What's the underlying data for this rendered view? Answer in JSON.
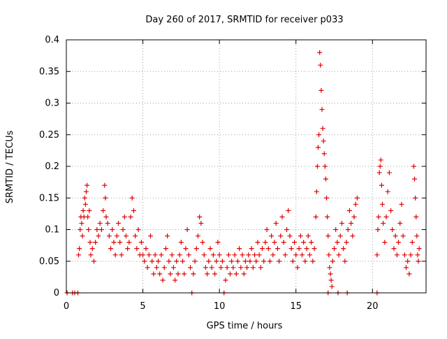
{
  "chart_data": {
    "type": "scatter",
    "title": "Day 260 of 2017, SRMTID for receiver p033",
    "xlabel": "GPS time / hours",
    "ylabel": "SRMTID / TECUs",
    "xlim": [
      0,
      23.5
    ],
    "ylim": [
      0,
      0.4
    ],
    "xticks": [
      0,
      5,
      10,
      15,
      20
    ],
    "xtick_labels": [
      "0",
      "5",
      "10",
      "15",
      "20"
    ],
    "yticks": [
      0,
      0.05,
      0.1,
      0.15,
      0.2,
      0.25,
      0.3,
      0.35,
      0.4
    ],
    "ytick_labels": [
      "0",
      "0.05",
      "0.1",
      "0.15",
      "0.2",
      "0.25",
      "0.3",
      "0.35",
      "0.4"
    ],
    "grid": true,
    "marker": "plus",
    "series_color": "#e00000",
    "series": [
      {
        "name": "SRMTID",
        "points": [
          [
            0.05,
            0.0
          ],
          [
            0.4,
            0.0
          ],
          [
            0.55,
            0.0
          ],
          [
            0.75,
            0.0
          ],
          [
            8.2,
            0.0
          ],
          [
            10.3,
            0.0
          ],
          [
            17.1,
            0.0
          ],
          [
            17.75,
            0.0
          ],
          [
            18.35,
            0.0
          ],
          [
            20.3,
            0.0
          ],
          [
            0.8,
            0.06
          ],
          [
            0.85,
            0.07
          ],
          [
            0.9,
            0.1
          ],
          [
            0.95,
            0.12
          ],
          [
            1.0,
            0.11
          ],
          [
            1.05,
            0.09
          ],
          [
            1.1,
            0.13
          ],
          [
            1.15,
            0.12
          ],
          [
            1.2,
            0.15
          ],
          [
            1.25,
            0.14
          ],
          [
            1.3,
            0.16
          ],
          [
            1.35,
            0.17
          ],
          [
            1.4,
            0.12
          ],
          [
            1.45,
            0.1
          ],
          [
            1.5,
            0.13
          ],
          [
            1.55,
            0.08
          ],
          [
            1.6,
            0.06
          ],
          [
            1.7,
            0.07
          ],
          [
            1.8,
            0.05
          ],
          [
            1.9,
            0.08
          ],
          [
            2.0,
            0.1
          ],
          [
            2.1,
            0.09
          ],
          [
            2.2,
            0.11
          ],
          [
            2.3,
            0.1
          ],
          [
            2.4,
            0.13
          ],
          [
            2.5,
            0.17
          ],
          [
            2.55,
            0.15
          ],
          [
            2.6,
            0.12
          ],
          [
            2.7,
            0.11
          ],
          [
            2.8,
            0.09
          ],
          [
            2.9,
            0.07
          ],
          [
            3.0,
            0.1
          ],
          [
            3.1,
            0.08
          ],
          [
            3.2,
            0.06
          ],
          [
            3.3,
            0.09
          ],
          [
            3.4,
            0.11
          ],
          [
            3.5,
            0.08
          ],
          [
            3.6,
            0.06
          ],
          [
            3.7,
            0.1
          ],
          [
            3.8,
            0.12
          ],
          [
            3.9,
            0.09
          ],
          [
            4.0,
            0.07
          ],
          [
            4.1,
            0.08
          ],
          [
            4.2,
            0.12
          ],
          [
            4.3,
            0.15
          ],
          [
            4.4,
            0.13
          ],
          [
            4.5,
            0.09
          ],
          [
            4.6,
            0.07
          ],
          [
            4.7,
            0.1
          ],
          [
            4.8,
            0.06
          ],
          [
            4.9,
            0.08
          ],
          [
            5.0,
            0.06
          ],
          [
            5.1,
            0.05
          ],
          [
            5.2,
            0.07
          ],
          [
            5.3,
            0.04
          ],
          [
            5.4,
            0.06
          ],
          [
            5.5,
            0.09
          ],
          [
            5.6,
            0.05
          ],
          [
            5.7,
            0.03
          ],
          [
            5.8,
            0.06
          ],
          [
            5.9,
            0.04
          ],
          [
            6.0,
            0.05
          ],
          [
            6.1,
            0.03
          ],
          [
            6.2,
            0.06
          ],
          [
            6.3,
            0.02
          ],
          [
            6.4,
            0.04
          ],
          [
            6.5,
            0.07
          ],
          [
            6.6,
            0.09
          ],
          [
            6.7,
            0.05
          ],
          [
            6.8,
            0.03
          ],
          [
            6.9,
            0.06
          ],
          [
            7.0,
            0.04
          ],
          [
            7.1,
            0.02
          ],
          [
            7.2,
            0.05
          ],
          [
            7.3,
            0.03
          ],
          [
            7.4,
            0.06
          ],
          [
            7.5,
            0.08
          ],
          [
            7.6,
            0.05
          ],
          [
            7.7,
            0.03
          ],
          [
            7.8,
            0.07
          ],
          [
            7.9,
            0.1
          ],
          [
            8.0,
            0.06
          ],
          [
            8.1,
            0.04
          ],
          [
            8.3,
            0.03
          ],
          [
            8.4,
            0.05
          ],
          [
            8.5,
            0.07
          ],
          [
            8.6,
            0.09
          ],
          [
            8.7,
            0.12
          ],
          [
            8.8,
            0.11
          ],
          [
            8.9,
            0.08
          ],
          [
            9.0,
            0.06
          ],
          [
            9.1,
            0.04
          ],
          [
            9.2,
            0.03
          ],
          [
            9.3,
            0.05
          ],
          [
            9.4,
            0.07
          ],
          [
            9.5,
            0.04
          ],
          [
            9.6,
            0.06
          ],
          [
            9.7,
            0.03
          ],
          [
            9.8,
            0.05
          ],
          [
            9.9,
            0.08
          ],
          [
            10.0,
            0.06
          ],
          [
            10.1,
            0.04
          ],
          [
            10.2,
            0.05
          ],
          [
            10.4,
            0.02
          ],
          [
            10.5,
            0.04
          ],
          [
            10.6,
            0.06
          ],
          [
            10.7,
            0.03
          ],
          [
            10.8,
            0.05
          ],
          [
            10.9,
            0.04
          ],
          [
            11.0,
            0.06
          ],
          [
            11.1,
            0.03
          ],
          [
            11.2,
            0.05
          ],
          [
            11.3,
            0.07
          ],
          [
            11.4,
            0.04
          ],
          [
            11.5,
            0.06
          ],
          [
            11.6,
            0.03
          ],
          [
            11.7,
            0.05
          ],
          [
            11.8,
            0.04
          ],
          [
            11.9,
            0.06
          ],
          [
            12.0,
            0.05
          ],
          [
            12.1,
            0.07
          ],
          [
            12.2,
            0.04
          ],
          [
            12.3,
            0.06
          ],
          [
            12.4,
            0.05
          ],
          [
            12.5,
            0.08
          ],
          [
            12.6,
            0.06
          ],
          [
            12.7,
            0.04
          ],
          [
            12.8,
            0.07
          ],
          [
            12.9,
            0.05
          ],
          [
            13.0,
            0.08
          ],
          [
            13.1,
            0.1
          ],
          [
            13.2,
            0.07
          ],
          [
            13.3,
            0.05
          ],
          [
            13.4,
            0.09
          ],
          [
            13.5,
            0.06
          ],
          [
            13.6,
            0.08
          ],
          [
            13.7,
            0.11
          ],
          [
            13.8,
            0.07
          ],
          [
            13.9,
            0.05
          ],
          [
            14.0,
            0.09
          ],
          [
            14.1,
            0.12
          ],
          [
            14.2,
            0.08
          ],
          [
            14.3,
            0.06
          ],
          [
            14.4,
            0.1
          ],
          [
            14.5,
            0.13
          ],
          [
            14.6,
            0.09
          ],
          [
            14.7,
            0.07
          ],
          [
            14.8,
            0.05
          ],
          [
            14.9,
            0.08
          ],
          [
            15.0,
            0.06
          ],
          [
            15.1,
            0.04
          ],
          [
            15.2,
            0.07
          ],
          [
            15.3,
            0.09
          ],
          [
            15.4,
            0.06
          ],
          [
            15.5,
            0.08
          ],
          [
            15.6,
            0.05
          ],
          [
            15.7,
            0.07
          ],
          [
            15.8,
            0.09
          ],
          [
            15.9,
            0.06
          ],
          [
            16.0,
            0.08
          ],
          [
            16.1,
            0.05
          ],
          [
            16.2,
            0.07
          ],
          [
            16.3,
            0.12
          ],
          [
            16.35,
            0.16
          ],
          [
            16.4,
            0.2
          ],
          [
            16.45,
            0.23
          ],
          [
            16.5,
            0.25
          ],
          [
            16.55,
            0.38
          ],
          [
            16.6,
            0.36
          ],
          [
            16.65,
            0.32
          ],
          [
            16.7,
            0.29
          ],
          [
            16.75,
            0.26
          ],
          [
            16.8,
            0.24
          ],
          [
            16.85,
            0.22
          ],
          [
            16.9,
            0.2
          ],
          [
            16.95,
            0.18
          ],
          [
            17.0,
            0.15
          ],
          [
            17.05,
            0.12
          ],
          [
            17.1,
            0.09
          ],
          [
            17.15,
            0.06
          ],
          [
            17.2,
            0.04
          ],
          [
            17.25,
            0.03
          ],
          [
            17.3,
            0.02
          ],
          [
            17.35,
            0.01
          ],
          [
            17.4,
            0.05
          ],
          [
            17.5,
            0.07
          ],
          [
            17.6,
            0.1
          ],
          [
            17.7,
            0.08
          ],
          [
            17.8,
            0.06
          ],
          [
            17.9,
            0.09
          ],
          [
            18.0,
            0.11
          ],
          [
            18.1,
            0.07
          ],
          [
            18.2,
            0.05
          ],
          [
            18.3,
            0.08
          ],
          [
            18.4,
            0.1
          ],
          [
            18.5,
            0.13
          ],
          [
            18.6,
            0.11
          ],
          [
            18.7,
            0.09
          ],
          [
            18.8,
            0.12
          ],
          [
            18.9,
            0.14
          ],
          [
            19.0,
            0.15
          ],
          [
            20.3,
            0.06
          ],
          [
            20.35,
            0.1
          ],
          [
            20.4,
            0.12
          ],
          [
            20.45,
            0.19
          ],
          [
            20.5,
            0.2
          ],
          [
            20.55,
            0.21
          ],
          [
            20.6,
            0.17
          ],
          [
            20.65,
            0.14
          ],
          [
            20.7,
            0.11
          ],
          [
            20.8,
            0.08
          ],
          [
            20.9,
            0.12
          ],
          [
            21.0,
            0.16
          ],
          [
            21.1,
            0.19
          ],
          [
            21.2,
            0.13
          ],
          [
            21.3,
            0.1
          ],
          [
            21.4,
            0.07
          ],
          [
            21.5,
            0.09
          ],
          [
            21.6,
            0.06
          ],
          [
            21.7,
            0.08
          ],
          [
            21.8,
            0.11
          ],
          [
            21.9,
            0.14
          ],
          [
            22.0,
            0.09
          ],
          [
            22.1,
            0.06
          ],
          [
            22.2,
            0.04
          ],
          [
            22.3,
            0.05
          ],
          [
            22.4,
            0.03
          ],
          [
            22.5,
            0.06
          ],
          [
            22.6,
            0.08
          ],
          [
            22.7,
            0.2
          ],
          [
            22.75,
            0.18
          ],
          [
            22.8,
            0.15
          ],
          [
            22.85,
            0.12
          ],
          [
            22.9,
            0.09
          ],
          [
            22.95,
            0.06
          ],
          [
            23.0,
            0.05
          ],
          [
            23.05,
            0.07
          ]
        ]
      }
    ]
  }
}
